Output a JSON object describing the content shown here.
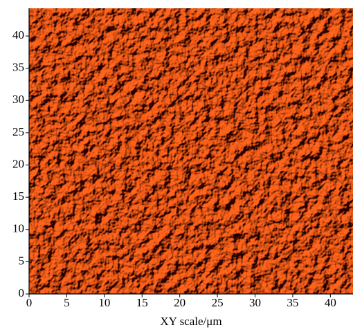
{
  "chart_data": {
    "type": "image",
    "xlabel": "XY scale/μm",
    "xlim": [
      0,
      43
    ],
    "ylim": [
      0,
      44.3
    ],
    "xticks": [
      0,
      5,
      10,
      15,
      20,
      25,
      30,
      35,
      40
    ],
    "yticks": [
      0,
      5,
      10,
      15,
      20,
      25,
      30,
      35,
      40
    ]
  }
}
